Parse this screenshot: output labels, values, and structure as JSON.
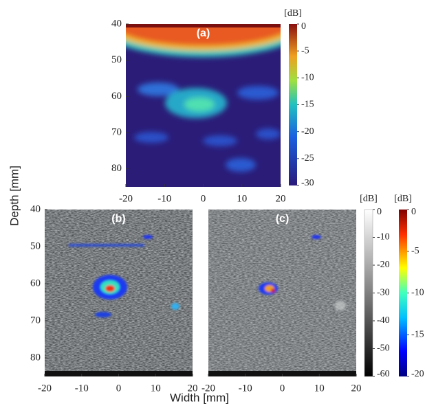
{
  "figure": {
    "y_label": "Depth [mm]",
    "x_label": "Width [mm]",
    "panels": [
      {
        "label": "(a)",
        "xlim": [
          -20,
          20
        ],
        "ylim": [
          40,
          85
        ],
        "xticks": [
          -20,
          -10,
          0,
          10,
          20
        ],
        "yticks": [
          40,
          50,
          60,
          70,
          80
        ]
      },
      {
        "label": "(b)",
        "xlim": [
          -20,
          20
        ],
        "ylim": [
          40,
          85
        ],
        "xticks": [
          -20,
          -10,
          0,
          10,
          20
        ],
        "yticks": [
          40,
          50,
          60,
          70,
          80
        ]
      },
      {
        "label": "(c)",
        "xlim": [
          -20,
          20
        ],
        "ylim": [
          40,
          85
        ],
        "xticks": [
          -20,
          -10,
          0,
          10,
          20
        ]
      }
    ],
    "colorbars": [
      {
        "unit": "[dB]",
        "lim": [
          -30,
          0
        ],
        "ticks": [
          0,
          -5,
          -10,
          -15,
          -20,
          -25,
          -30
        ]
      },
      {
        "unit": "[dB]",
        "lim": [
          -60,
          0
        ],
        "ticks": [
          0,
          -10,
          -20,
          -30,
          -40,
          -50,
          -60
        ]
      },
      {
        "unit": "[dB]",
        "lim": [
          -20,
          0
        ],
        "ticks": [
          0,
          -5,
          -10,
          -15,
          -20
        ]
      }
    ]
  }
}
